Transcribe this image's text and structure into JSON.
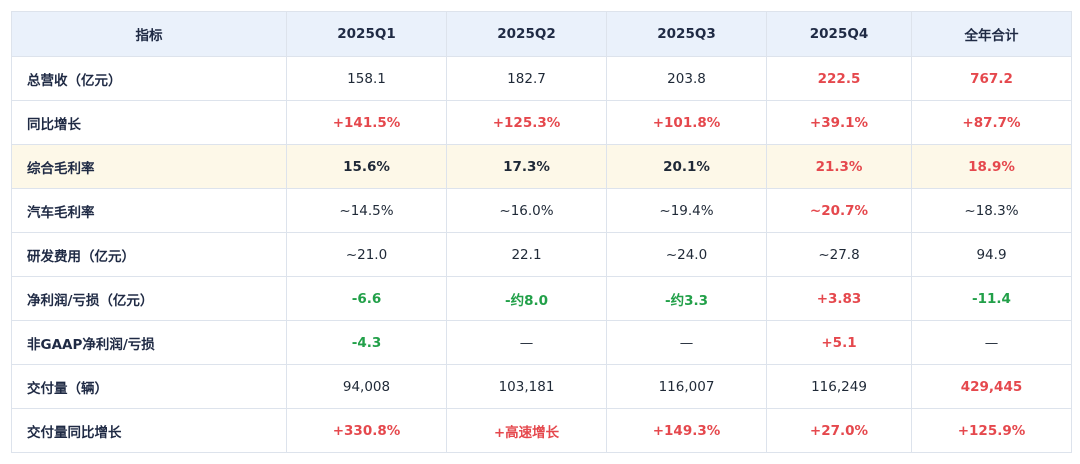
{
  "table": {
    "headers": [
      "指标",
      "2025Q1",
      "2025Q2",
      "2025Q3",
      "2025Q4",
      "全年合计"
    ],
    "colors": {
      "positive": "#e5484d",
      "negative": "#22a049",
      "highlight_row": "#fdf8e8",
      "header_bg": "#eaf1fb"
    },
    "rows": [
      {
        "label": "总营收（亿元）",
        "cells": [
          {
            "v": "158.1"
          },
          {
            "v": "182.7"
          },
          {
            "v": "203.8"
          },
          {
            "v": "222.5",
            "s": "red"
          },
          {
            "v": "767.2",
            "s": "red"
          }
        ]
      },
      {
        "label": "同比增长",
        "cells": [
          {
            "v": "+141.5%",
            "s": "red"
          },
          {
            "v": "+125.3%",
            "s": "red"
          },
          {
            "v": "+101.8%",
            "s": "red"
          },
          {
            "v": "+39.1%",
            "s": "red"
          },
          {
            "v": "+87.7%",
            "s": "red"
          }
        ]
      },
      {
        "label": "综合毛利率",
        "highlight": true,
        "cells": [
          {
            "v": "15.6%",
            "s": "bold"
          },
          {
            "v": "17.3%",
            "s": "bold"
          },
          {
            "v": "20.1%",
            "s": "bold"
          },
          {
            "v": "21.3%",
            "s": "red"
          },
          {
            "v": "18.9%",
            "s": "red"
          }
        ]
      },
      {
        "label": "汽车毛利率",
        "cells": [
          {
            "v": "~14.5%"
          },
          {
            "v": "~16.0%"
          },
          {
            "v": "~19.4%"
          },
          {
            "v": "~20.7%",
            "s": "red"
          },
          {
            "v": "~18.3%"
          }
        ]
      },
      {
        "label": "研发费用（亿元）",
        "cells": [
          {
            "v": "~21.0"
          },
          {
            "v": "22.1"
          },
          {
            "v": "~24.0"
          },
          {
            "v": "~27.8"
          },
          {
            "v": "94.9"
          }
        ]
      },
      {
        "label": "净利润/亏损（亿元）",
        "cells": [
          {
            "v": "-6.6",
            "s": "green"
          },
          {
            "v": "-约8.0",
            "s": "green"
          },
          {
            "v": "-约3.3",
            "s": "green"
          },
          {
            "v": "+3.83",
            "s": "red"
          },
          {
            "v": "-11.4",
            "s": "green"
          }
        ]
      },
      {
        "label": "非GAAP净利润/亏损",
        "cells": [
          {
            "v": "-4.3",
            "s": "green"
          },
          {
            "v": "—"
          },
          {
            "v": "—"
          },
          {
            "v": "+5.1",
            "s": "red"
          },
          {
            "v": "—"
          }
        ]
      },
      {
        "label": "交付量（辆）",
        "cells": [
          {
            "v": "94,008"
          },
          {
            "v": "103,181"
          },
          {
            "v": "116,007"
          },
          {
            "v": "116,249"
          },
          {
            "v": "429,445",
            "s": "red"
          }
        ]
      },
      {
        "label": "交付量同比增长",
        "cells": [
          {
            "v": "+330.8%",
            "s": "red"
          },
          {
            "v": "+高速增长",
            "s": "red"
          },
          {
            "v": "+149.3%",
            "s": "red"
          },
          {
            "v": "+27.0%",
            "s": "red"
          },
          {
            "v": "+125.9%",
            "s": "red"
          }
        ]
      }
    ]
  }
}
